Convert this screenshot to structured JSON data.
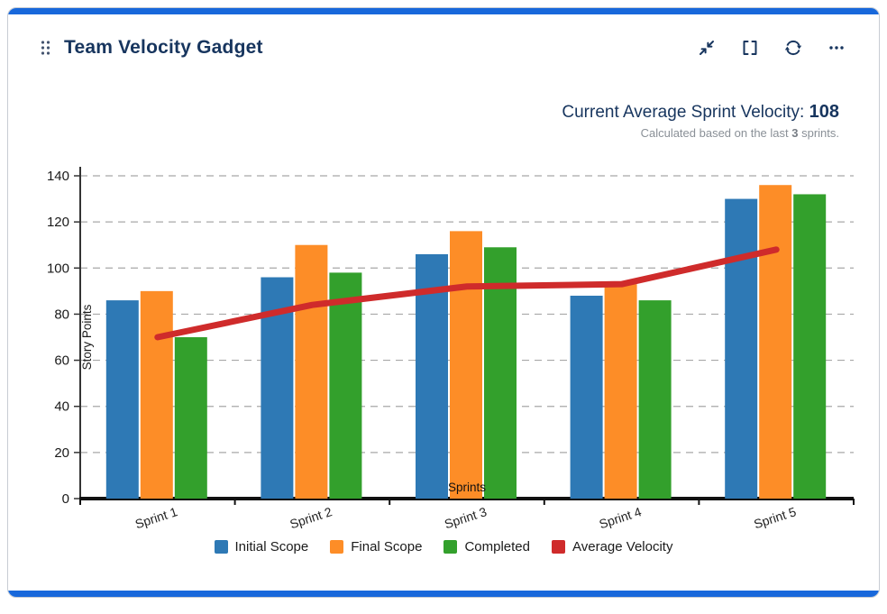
{
  "card": {
    "title": "Team Velocity Gadget",
    "accent_color": "#1868DB"
  },
  "toolbar": {
    "icons": [
      "collapse-icon",
      "fullscreen-icon",
      "refresh-icon",
      "more-icon"
    ]
  },
  "summary": {
    "label": "Current Average Sprint Velocity: ",
    "value": "108",
    "sub_prefix": "Calculated based on the last ",
    "sub_bold": "3",
    "sub_suffix": " sprints."
  },
  "theme": {
    "accent": "#1868DB",
    "title_color": "#17355E",
    "subtext_color": "#8A9097",
    "grid_color": "#A8A8A8",
    "axis_color": "#111111"
  },
  "chart_data": {
    "type": "bar",
    "categories": [
      "Sprint 1",
      "Sprint 2",
      "Sprint 3",
      "Sprint 4",
      "Sprint 5"
    ],
    "series": [
      {
        "name": "Initial Scope",
        "type": "bar",
        "color": "#2E79B5",
        "values": [
          86,
          96,
          106,
          88,
          130
        ]
      },
      {
        "name": "Final Scope",
        "type": "bar",
        "color": "#FD8D27",
        "values": [
          90,
          110,
          116,
          93,
          136
        ]
      },
      {
        "name": "Completed",
        "type": "bar",
        "color": "#33A02C",
        "values": [
          70,
          98,
          109,
          86,
          132
        ]
      },
      {
        "name": "Average Velocity",
        "type": "line",
        "color": "#CF2B2B",
        "values": [
          70,
          84,
          92,
          93,
          108
        ]
      }
    ],
    "title": "",
    "xlabel": "Sprints",
    "ylabel": "Story Points",
    "ylim": [
      0,
      140
    ],
    "yticks": [
      0,
      20,
      40,
      60,
      80,
      100,
      120,
      140
    ],
    "grid": "dashed-horizontal",
    "legend_position": "bottom"
  }
}
